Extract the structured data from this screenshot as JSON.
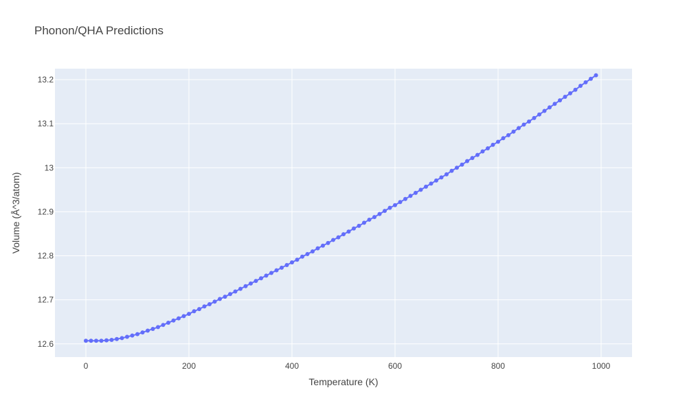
{
  "chart_data": {
    "type": "line",
    "title": "Phonon/QHA Predictions",
    "xlabel": "Temperature (K)",
    "ylabel": "Volume (Å^3/atom)",
    "xlim": [
      -60,
      1060
    ],
    "ylim": [
      12.57,
      13.225
    ],
    "xticks": [
      0,
      200,
      400,
      600,
      800,
      1000
    ],
    "xtick_labels": [
      "0",
      "200",
      "400",
      "600",
      "800",
      "1000"
    ],
    "yticks": [
      12.6,
      12.7,
      12.8,
      12.9,
      13.0,
      13.1,
      13.2
    ],
    "ytick_labels": [
      "12.6",
      "12.7",
      "12.8",
      "12.9",
      "13",
      "13.1",
      "13.2"
    ],
    "grid": true,
    "legend": "none",
    "colors": {
      "plot_bg": "#e5ecf6",
      "series": "#636efa",
      "text": "#444444"
    },
    "series": [
      {
        "mode": "lines+markers",
        "x": [
          0,
          10,
          20,
          30,
          40,
          50,
          60,
          70,
          80,
          90,
          100,
          110,
          120,
          130,
          140,
          150,
          160,
          170,
          180,
          190,
          200,
          210,
          220,
          230,
          240,
          250,
          260,
          270,
          280,
          290,
          300,
          310,
          320,
          330,
          340,
          350,
          360,
          370,
          380,
          390,
          400,
          410,
          420,
          430,
          440,
          450,
          460,
          470,
          480,
          490,
          500,
          510,
          520,
          530,
          540,
          550,
          560,
          570,
          580,
          590,
          600,
          610,
          620,
          630,
          640,
          650,
          660,
          670,
          680,
          690,
          700,
          710,
          720,
          730,
          740,
          750,
          760,
          770,
          780,
          790,
          800,
          810,
          820,
          830,
          840,
          850,
          860,
          870,
          880,
          890,
          900,
          910,
          920,
          930,
          940,
          950,
          960,
          970,
          980,
          990
        ],
        "y": [
          12.607,
          12.607,
          12.607,
          12.607,
          12.608,
          12.609,
          12.611,
          12.613,
          12.616,
          12.619,
          12.622,
          12.626,
          12.63,
          12.634,
          12.638,
          12.643,
          12.648,
          12.653,
          12.658,
          12.663,
          12.668,
          12.674,
          12.679,
          12.685,
          12.69,
          12.696,
          12.702,
          12.707,
          12.713,
          12.719,
          12.725,
          12.731,
          12.737,
          12.743,
          12.749,
          12.755,
          12.761,
          12.767,
          12.773,
          12.779,
          12.785,
          12.791,
          12.798,
          12.804,
          12.81,
          12.817,
          12.823,
          12.829,
          12.836,
          12.842,
          12.849,
          12.855,
          12.862,
          12.868,
          12.875,
          12.882,
          12.888,
          12.895,
          12.902,
          12.909,
          12.915,
          12.922,
          12.929,
          12.936,
          12.943,
          12.95,
          12.957,
          12.964,
          12.971,
          12.978,
          12.985,
          12.993,
          13.0,
          13.007,
          13.015,
          13.022,
          13.029,
          13.037,
          13.044,
          13.052,
          13.059,
          13.067,
          13.074,
          13.082,
          13.09,
          13.098,
          13.105,
          13.113,
          13.121,
          13.129,
          13.137,
          13.145,
          13.153,
          13.161,
          13.169,
          13.177,
          13.186,
          13.194,
          13.202,
          13.21
        ]
      }
    ]
  }
}
